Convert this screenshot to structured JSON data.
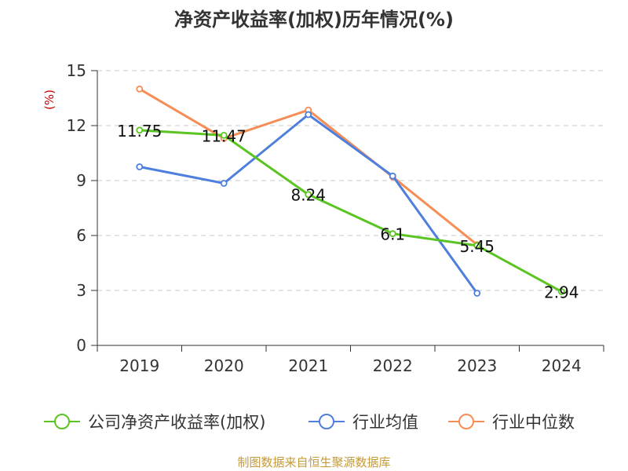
{
  "chart_data": {
    "type": "line",
    "title": "净资产收益率(加权)历年情况(%)",
    "ylabel": "(%)",
    "xlabel": "",
    "categories": [
      "2019",
      "2020",
      "2021",
      "2022",
      "2023",
      "2024"
    ],
    "ylim": [
      0,
      15
    ],
    "yticks": [
      0,
      3,
      6,
      9,
      12,
      15
    ],
    "grid": true,
    "legend_position": "bottom",
    "series": [
      {
        "name": "公司净资产收益率(加权)",
        "color": "#5ac421",
        "values": [
          11.75,
          11.47,
          8.24,
          6.1,
          5.45,
          2.94
        ],
        "labels": [
          "11.75",
          "11.47",
          "8.24",
          "6.1",
          "5.45",
          "2.94"
        ]
      },
      {
        "name": "行业均值",
        "color": "#4e7fdc",
        "values": [
          9.75,
          8.85,
          12.6,
          9.25,
          2.85,
          null
        ]
      },
      {
        "name": "行业中位数",
        "color": "#f68d55",
        "values": [
          14.0,
          11.3,
          12.85,
          9.2,
          5.5,
          null
        ]
      }
    ]
  },
  "footer": "制图数据来自恒生聚源数据库"
}
